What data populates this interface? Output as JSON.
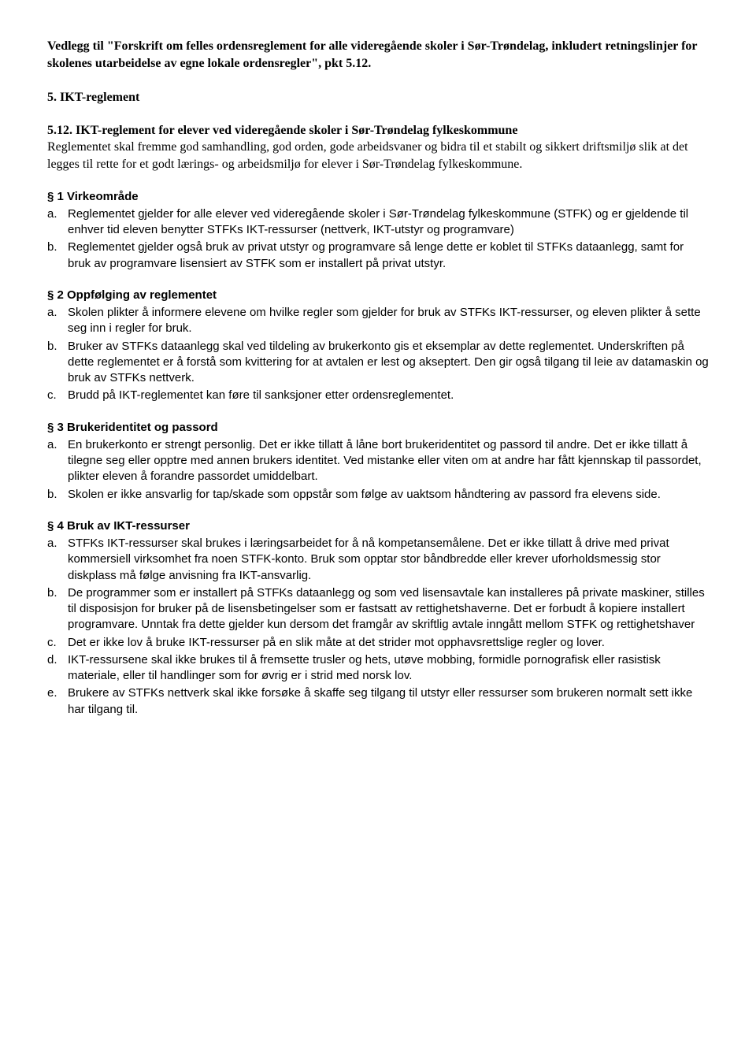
{
  "header_title": "Vedlegg til \"Forskrift om felles ordensreglement for alle videregående skoler i Sør-Trøndelag, inkludert retningslinjer for skolenes utarbeidelse av egne lokale ordensregler\", pkt 5.12.",
  "section5_heading": "5. IKT-reglement",
  "section512_heading": "5.12. IKT-reglement for elever ved videregående skoler i Sør-Trøndelag fylkeskommune",
  "intro": "Reglementet skal fremme god samhandling, god orden, gode arbeidsvaner og bidra til et stabilt og sikkert driftsmiljø slik at det legges til rette for et godt lærings- og arbeidsmiljø for elever i Sør-Trøndelag fylkeskommune.",
  "s1": {
    "heading": "§ 1 Virkeområde",
    "items": [
      {
        "marker": "a.",
        "text": "Reglementet gjelder for alle elever ved videregående skoler i Sør-Trøndelag fylkeskommune (STFK) og er gjeldende til enhver tid eleven benytter STFKs IKT-ressurser (nettverk, IKT-utstyr og programvare)"
      },
      {
        "marker": "b.",
        "text": "Reglementet gjelder også bruk av privat utstyr og programvare så lenge dette er koblet til STFKs dataanlegg, samt for bruk av programvare lisensiert av STFK som er installert på privat utstyr."
      }
    ]
  },
  "s2": {
    "heading": "§ 2 Oppfølging av reglementet",
    "items": [
      {
        "marker": "a.",
        "text": "Skolen plikter å informere elevene om hvilke regler som gjelder for bruk av STFKs  IKT-ressurser, og eleven plikter å sette seg inn i regler for bruk."
      },
      {
        "marker": "b.",
        "text": "Bruker av STFKs dataanlegg skal ved tildeling av brukerkonto gis et eksemplar av dette reglementet. Underskriften på dette reglementet er å forstå som kvittering for at avtalen er lest og akseptert. Den gir også tilgang til leie av datamaskin og bruk av STFKs nettverk."
      },
      {
        "marker": "c.",
        "text": "Brudd på IKT-reglementet kan føre til sanksjoner etter ordensreglementet."
      }
    ]
  },
  "s3": {
    "heading": "§ 3 Brukeridentitet og passord",
    "items": [
      {
        "marker": "a.",
        "text": "En brukerkonto er strengt personlig. Det er ikke tillatt å låne bort brukeridentitet og passord til andre. Det er ikke tillatt å tilegne seg eller opptre med annen brukers identitet. Ved mistanke eller viten om at andre har fått kjennskap til passordet, plikter eleven å forandre passordet umiddelbart."
      },
      {
        "marker": "b.",
        "text": "Skolen er ikke ansvarlig for tap/skade som oppstår som følge av uaktsom håndtering av passord fra elevens side."
      }
    ]
  },
  "s4": {
    "heading": "§ 4 Bruk av IKT-ressurser",
    "items": [
      {
        "marker": "a.",
        "text": "STFKs IKT-ressurser skal brukes i læringsarbeidet for å nå kompetansemålene. Det er ikke tillatt å drive med privat kommersiell virksomhet fra noen STFK-konto. Bruk som opptar stor båndbredde eller krever uforholdsmessig stor diskplass må følge anvisning fra IKT-ansvarlig."
      },
      {
        "marker": "b.",
        "text": "De programmer som er installert på STFKs dataanlegg og som ved lisensavtale kan installeres på private maskiner, stilles til disposisjon for bruker på de lisensbetingelser som er fastsatt av rettighetshaverne. Det er forbudt å kopiere installert programvare. Unntak fra dette gjelder kun dersom det framgår av skriftlig avtale inngått mellom STFK og rettighetshaver"
      },
      {
        "marker": "c.",
        "text": "Det er ikke lov å bruke IKT-ressurser på en slik måte at det strider mot opphavsrettslige regler og lover."
      },
      {
        "marker": "d.",
        "text": "IKT-ressursene skal ikke brukes til å fremsette trusler og hets, utøve mobbing, formidle pornografisk eller rasistisk materiale, eller til handlinger som for øvrig er i strid med norsk lov."
      },
      {
        "marker": "e.",
        "text": "Brukere av STFKs nettverk skal ikke forsøke å skaffe seg tilgang til utstyr eller ressurser som brukeren normalt sett ikke har tilgang til."
      }
    ]
  }
}
